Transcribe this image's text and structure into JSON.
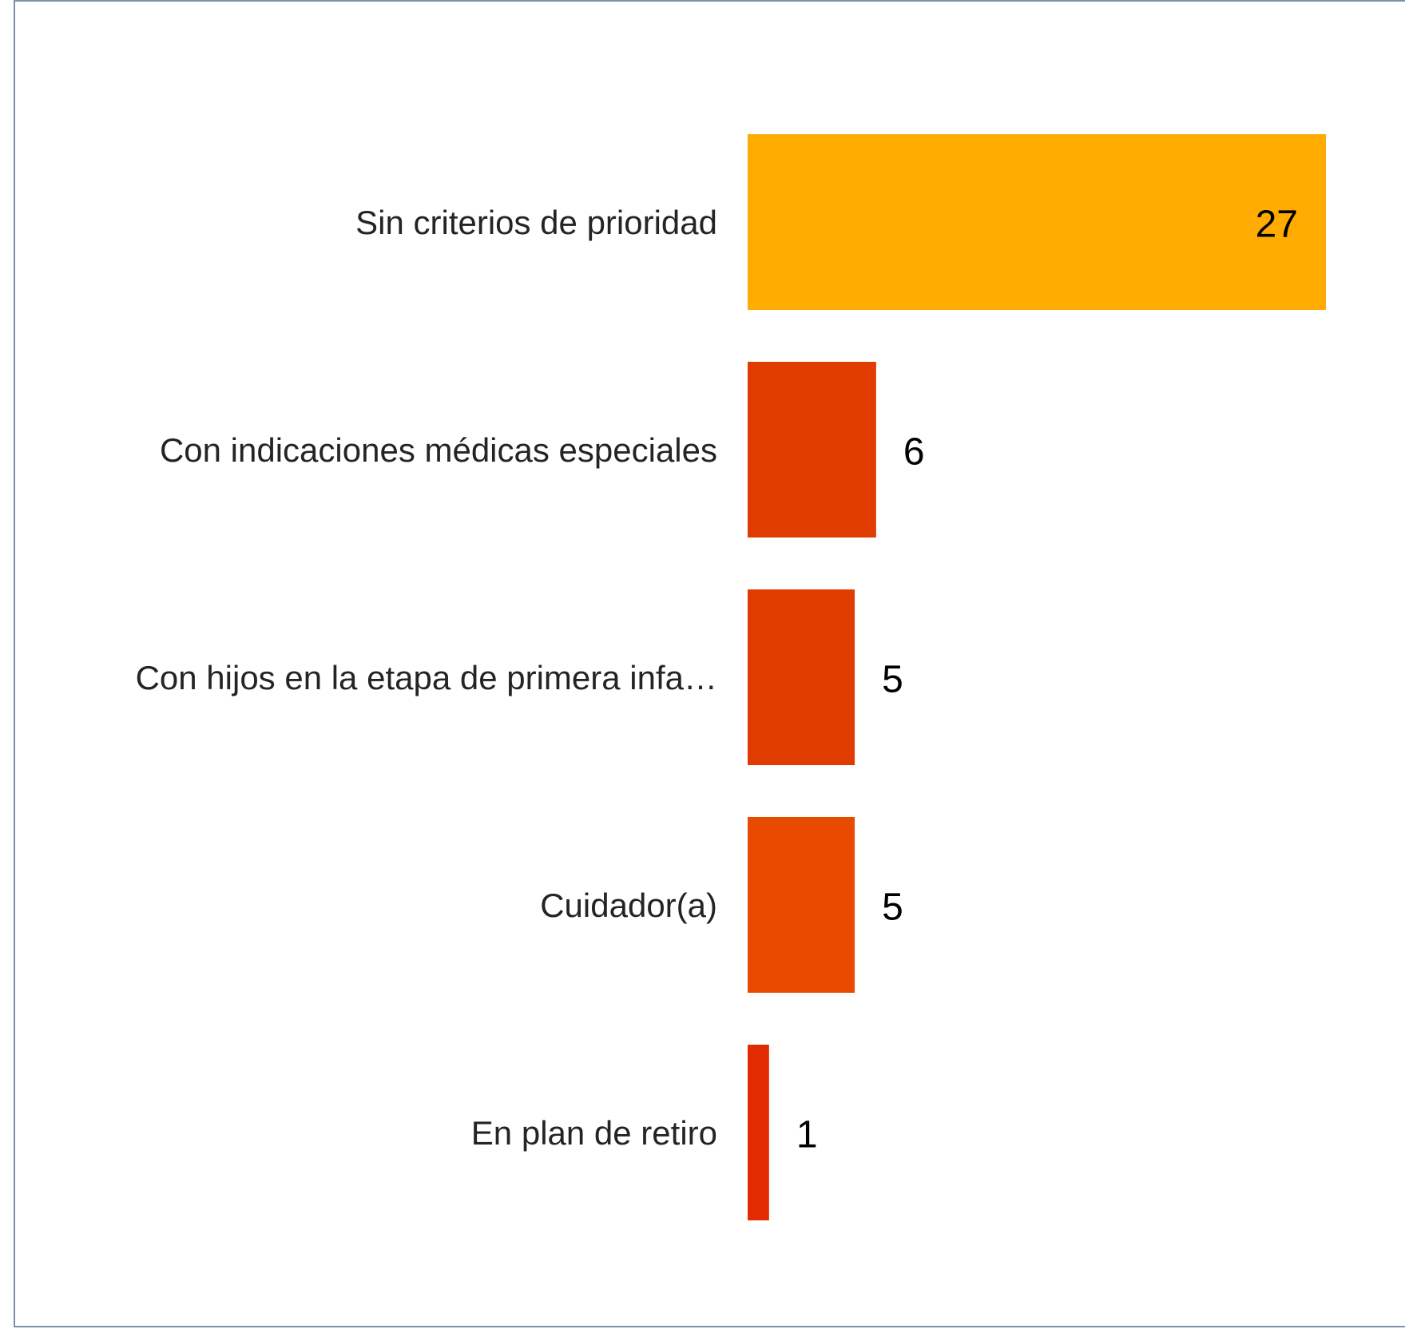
{
  "chart_data": {
    "type": "hbar",
    "categories": [
      "Sin criterios de prioridad",
      "Con indicaciones médicas especiales",
      "Con hijos en la etapa de primera infa…",
      "Cuidador(a)",
      "En plan de retiro"
    ],
    "values": [
      27,
      6,
      5,
      5,
      1
    ],
    "colors": [
      "#ffab00",
      "#e13c00",
      "#e13c00",
      "#e84b00",
      "#e02c00"
    ]
  }
}
